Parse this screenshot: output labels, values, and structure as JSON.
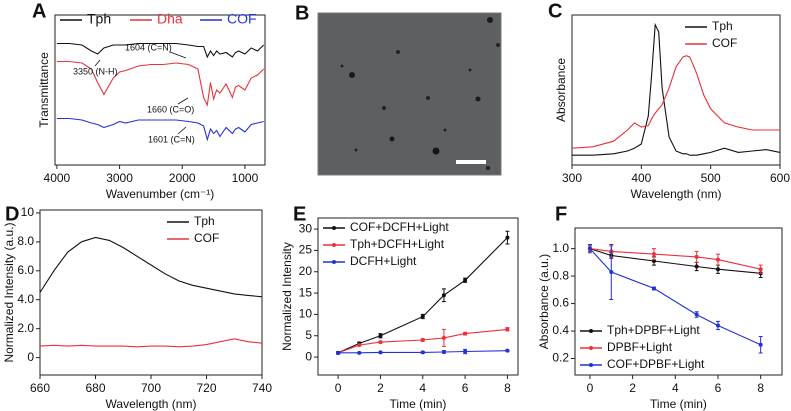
{
  "chart_data": [
    {
      "type": "line",
      "panel": "A",
      "xlabel": "Wavenumber (cm⁻¹)",
      "ylabel": "Transmittance",
      "x": [
        4000,
        3800,
        3600,
        3450,
        3350,
        3250,
        3100,
        3000,
        2900,
        2700,
        2500,
        2300,
        2100,
        1900,
        1750,
        1660,
        1600,
        1550,
        1500,
        1450,
        1400,
        1300,
        1200,
        1150,
        1100,
        1000,
        900,
        800,
        700
      ],
      "series": [
        {
          "name": "Tph",
          "color": "#111111",
          "values": [
            81,
            81,
            80,
            76,
            74,
            78,
            80,
            80,
            80,
            81,
            81,
            81,
            81,
            80,
            79,
            79,
            72,
            76,
            73,
            76,
            74,
            75,
            72,
            75,
            76,
            74,
            78,
            76,
            80
          ]
        },
        {
          "name": "Dha",
          "color": "#e8323c",
          "values": [
            69,
            69,
            68,
            64,
            55,
            47,
            58,
            62,
            63,
            66,
            67,
            67,
            68,
            67,
            64,
            45,
            40,
            55,
            44,
            50,
            48,
            54,
            45,
            52,
            53,
            50,
            58,
            60,
            64
          ]
        },
        {
          "name": "COF",
          "color": "#2233d6",
          "values": [
            31,
            31,
            30,
            28,
            27,
            25,
            27,
            29,
            28,
            30,
            30,
            30,
            30,
            29,
            28,
            26,
            17,
            24,
            21,
            23,
            19,
            25,
            21,
            24,
            25,
            22,
            27,
            28,
            29
          ]
        }
      ],
      "xlim": [
        4030,
        680
      ],
      "ylim": [
        0,
        100
      ],
      "xticks": [
        4000,
        3000,
        2000,
        1000
      ],
      "legend": "top",
      "legend_text_colored": true,
      "annotations": [
        "1604 (C=N)",
        "3350 (N-H)",
        "1660 (C=O)",
        "1601 (C=N)"
      ]
    },
    {
      "type": "line",
      "panel": "C",
      "xlabel": "Wavelength (nm)",
      "ylabel": "Absorbance",
      "x": [
        300,
        330,
        360,
        380,
        390,
        400,
        410,
        415,
        420,
        425,
        430,
        440,
        450,
        460,
        465,
        470,
        480,
        490,
        500,
        520,
        540,
        560,
        580,
        600
      ],
      "series": [
        {
          "name": "Tph",
          "color": "#111111",
          "values": [
            0.02,
            0.02,
            0.03,
            0.05,
            0.07,
            0.1,
            0.3,
            0.6,
            0.95,
            0.9,
            0.5,
            0.15,
            0.05,
            0.03,
            0.03,
            0.02,
            0.02,
            0.03,
            0.04,
            0.07,
            0.04,
            0.05,
            0.06,
            0.04
          ]
        },
        {
          "name": "COF",
          "color": "#e8323c",
          "values": [
            0.07,
            0.08,
            0.12,
            0.2,
            0.25,
            0.22,
            0.23,
            0.28,
            0.32,
            0.35,
            0.38,
            0.5,
            0.65,
            0.72,
            0.73,
            0.72,
            0.6,
            0.45,
            0.35,
            0.25,
            0.22,
            0.2,
            0.2,
            0.2
          ]
        }
      ],
      "xlim": [
        300,
        600
      ],
      "ylim": [
        -0.05,
        1.02
      ],
      "xticks": [
        300,
        400,
        500,
        600
      ],
      "legend": "top-right"
    },
    {
      "type": "line",
      "panel": "D",
      "xlabel": "Wavelength (nm)",
      "ylabel": "Normalized Intensity (a.u.)",
      "x": [
        660,
        665,
        670,
        675,
        680,
        685,
        690,
        695,
        700,
        705,
        710,
        715,
        720,
        725,
        730,
        735,
        740
      ],
      "series": [
        {
          "name": "Tph",
          "color": "#111111",
          "values": [
            4.5,
            6,
            7.3,
            8,
            8.3,
            8.1,
            7.6,
            7,
            6.4,
            5.8,
            5.3,
            5,
            4.8,
            4.6,
            4.4,
            4.3,
            4.2
          ]
        },
        {
          "name": "COF",
          "color": "#e8323c",
          "values": [
            0.8,
            0.85,
            0.8,
            0.85,
            0.8,
            0.8,
            0.8,
            0.75,
            0.8,
            0.8,
            0.75,
            0.8,
            0.9,
            1.1,
            1.3,
            1.1,
            1.0
          ]
        }
      ],
      "xlim": [
        660,
        740
      ],
      "ylim": [
        -1.2,
        10.2
      ],
      "xticks": [
        660,
        680,
        700,
        720,
        740
      ],
      "yticks": [
        0,
        {
          "value": 2,
          "label": "2.0"
        },
        {
          "value": 4,
          "label": "4.0"
        },
        {
          "value": 6,
          "label": "6.0"
        },
        {
          "value": 8,
          "label": "8.0"
        },
        10
      ],
      "legend": "top-right"
    },
    {
      "type": "line",
      "panel": "E",
      "xlabel": "Time (min)",
      "ylabel": "Normalized Intensity",
      "x": [
        0,
        1,
        2,
        4,
        5,
        6,
        8
      ],
      "series": [
        {
          "name": "COF+DCFH+Light",
          "color": "#111111",
          "values": [
            1,
            3.2,
            5,
            9.5,
            14.5,
            18,
            28
          ],
          "errors": [
            0.3,
            0.3,
            0.5,
            0.5,
            1.5,
            0.5,
            1.5
          ]
        },
        {
          "name": "Tph+DCFH+Light",
          "color": "#e8323c",
          "values": [
            1,
            2.8,
            3.5,
            4,
            4.5,
            5.5,
            6.5
          ],
          "errors": [
            0.2,
            0.2,
            0.2,
            0.3,
            2,
            0.3,
            0.4
          ]
        },
        {
          "name": "DCFH+Light",
          "color": "#2233d6",
          "values": [
            1,
            1,
            1.1,
            1.1,
            1.2,
            1.3,
            1.5
          ],
          "errors": [
            0.1,
            0.1,
            0.1,
            0.2,
            0.3,
            0.5,
            0.2
          ]
        }
      ],
      "xlim": [
        -0.95,
        8.5
      ],
      "ylim": [
        -4.2,
        32.6
      ],
      "xticks": [
        0,
        2,
        4,
        6,
        8
      ],
      "yticks": [
        0,
        5,
        10,
        15,
        20,
        25,
        30
      ],
      "legend": "top-left",
      "markers": true
    },
    {
      "type": "line",
      "panel": "F",
      "xlabel": "Time (min)",
      "ylabel": "Absorbance (a.u.)",
      "x": [
        0,
        1,
        3,
        5,
        6,
        8
      ],
      "series": [
        {
          "name": "Tph+DPBF+Light",
          "color": "#111111",
          "values": [
            1,
            0.95,
            0.91,
            0.87,
            0.85,
            0.82
          ],
          "errors": [
            0.02,
            0.02,
            0.03,
            0.03,
            0.03,
            0.03
          ]
        },
        {
          "name": "DPBF+Light",
          "color": "#e8323c",
          "values": [
            1,
            0.98,
            0.96,
            0.94,
            0.92,
            0.85
          ],
          "errors": [
            0.02,
            0.04,
            0.04,
            0.04,
            0.04,
            0.03
          ]
        },
        {
          "name": "COF+DPBF+Light",
          "color": "#2233d6",
          "values": [
            1,
            0.83,
            0.71,
            0.52,
            0.44,
            0.3
          ],
          "errors": [
            0.03,
            0.2,
            0.01,
            0.02,
            0.03,
            0.06
          ]
        }
      ],
      "xlim": [
        -0.7,
        9
      ],
      "ylim": [
        0.08,
        1.15
      ],
      "xticks": [
        0,
        2,
        4,
        6,
        8
      ],
      "yticks": [
        0.2,
        0.4,
        0.6,
        0.8,
        {
          "value": 1,
          "label": "1.0"
        }
      ],
      "legend": "bottom-left",
      "markers": true
    }
  ],
  "sem_image": {
    "panel": "B"
  }
}
